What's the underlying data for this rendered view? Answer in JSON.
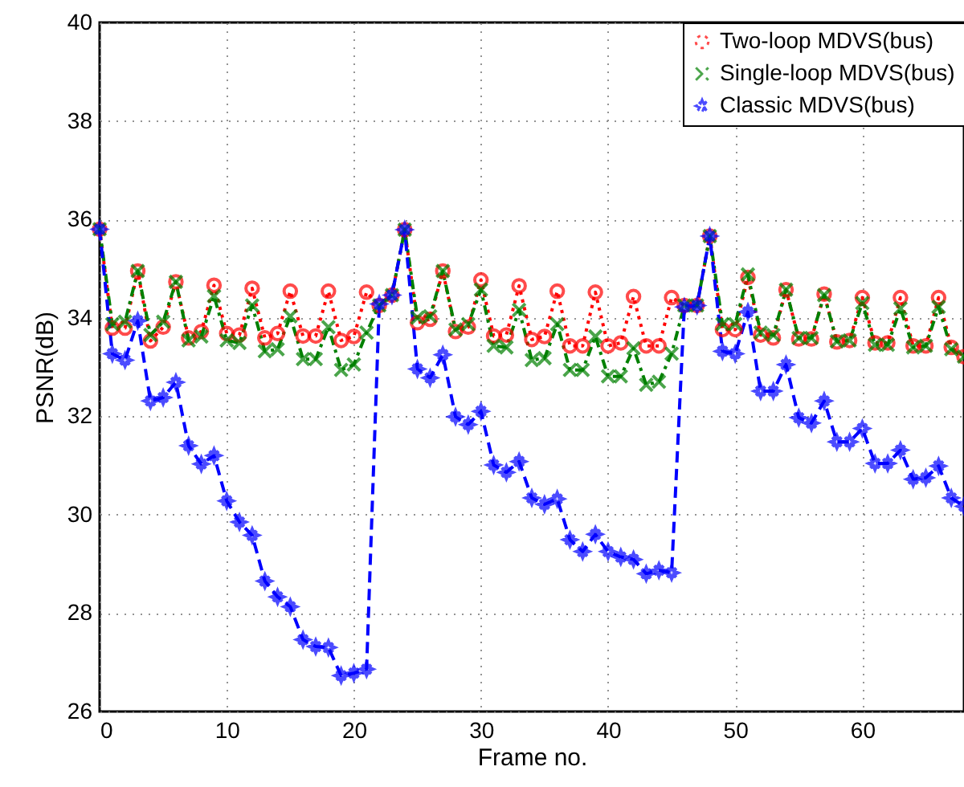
{
  "chart_data": {
    "type": "line",
    "xlabel": "Frame no.",
    "ylabel": "PSNR(dB)",
    "xlim": [
      0,
      68
    ],
    "ylim": [
      26,
      40
    ],
    "xticks": [
      0,
      10,
      20,
      30,
      40,
      50,
      60
    ],
    "yticks": [
      26,
      28,
      30,
      32,
      34,
      36,
      38,
      40
    ],
    "grid": true,
    "legend": "top right",
    "x": [
      0,
      1,
      2,
      3,
      4,
      5,
      6,
      7,
      8,
      9,
      10,
      11,
      12,
      13,
      14,
      15,
      16,
      17,
      18,
      19,
      20,
      21,
      22,
      23,
      24,
      25,
      26,
      27,
      28,
      29,
      30,
      31,
      32,
      33,
      34,
      35,
      36,
      37,
      38,
      39,
      40,
      41,
      42,
      43,
      44,
      45,
      46,
      47,
      48,
      49,
      50,
      51,
      52,
      53,
      54,
      55,
      56,
      57,
      58,
      59,
      60,
      61,
      62,
      63,
      64,
      65,
      66,
      67,
      68
    ],
    "series": [
      {
        "name": "Two-loop MDVS(bus)",
        "color": "#ff0000",
        "marker": "circle",
        "line_style": "dotted",
        "values": [
          35.8,
          33.79,
          33.79,
          34.95,
          33.53,
          33.81,
          34.73,
          33.59,
          33.72,
          34.66,
          33.68,
          33.65,
          34.6,
          33.59,
          33.68,
          34.54,
          33.63,
          33.63,
          34.54,
          33.54,
          33.62,
          34.52,
          34.25,
          34.46,
          35.79,
          33.9,
          33.97,
          34.95,
          33.72,
          33.81,
          34.77,
          33.63,
          33.65,
          34.65,
          33.56,
          33.62,
          34.54,
          33.43,
          33.43,
          34.52,
          33.43,
          33.49,
          34.43,
          33.43,
          33.43,
          34.41,
          34.25,
          34.25,
          35.66,
          33.76,
          33.76,
          34.82,
          33.65,
          33.59,
          34.57,
          33.57,
          33.57,
          34.48,
          33.51,
          33.54,
          34.41,
          33.49,
          33.49,
          34.41,
          33.43,
          33.43,
          34.41,
          33.4,
          33.21
        ]
      },
      {
        "name": "Single-loop MDVS(bus)",
        "color": "#008000",
        "marker": "cross",
        "line_style": "dashed",
        "values": [
          35.8,
          33.87,
          33.92,
          34.95,
          33.65,
          33.92,
          34.73,
          33.54,
          33.62,
          34.44,
          33.54,
          33.49,
          34.25,
          33.32,
          33.36,
          34.03,
          33.16,
          33.16,
          33.81,
          32.94,
          33.05,
          33.7,
          34.25,
          34.46,
          35.79,
          34.0,
          34.03,
          34.95,
          33.76,
          33.87,
          34.57,
          33.43,
          33.4,
          34.16,
          33.14,
          33.18,
          33.87,
          32.94,
          32.94,
          33.62,
          32.81,
          32.81,
          33.38,
          32.64,
          32.7,
          33.27,
          34.25,
          34.25,
          35.66,
          33.87,
          33.87,
          34.88,
          33.7,
          33.65,
          34.57,
          33.59,
          33.59,
          34.46,
          33.52,
          33.54,
          34.3,
          33.45,
          33.45,
          34.19,
          33.4,
          33.43,
          34.22,
          33.36,
          33.21
        ]
      },
      {
        "name": "Classic MDVS(bus)",
        "color": "#0000ff",
        "marker": "star",
        "line_style": "dashed",
        "values": [
          35.8,
          33.27,
          33.14,
          33.94,
          32.31,
          32.38,
          32.69,
          31.4,
          31.03,
          31.2,
          30.28,
          29.85,
          29.58,
          28.65,
          28.33,
          28.13,
          27.46,
          27.32,
          27.3,
          26.73,
          26.78,
          26.86,
          34.28,
          34.46,
          35.79,
          32.96,
          32.78,
          33.25,
          31.99,
          31.83,
          32.1,
          31.01,
          30.86,
          31.08,
          30.34,
          30.21,
          30.32,
          29.49,
          29.25,
          29.6,
          29.25,
          29.14,
          29.09,
          28.8,
          28.87,
          28.82,
          34.22,
          34.25,
          35.66,
          33.32,
          33.27,
          34.12,
          32.51,
          32.51,
          33.05,
          31.97,
          31.86,
          32.31,
          31.48,
          31.48,
          31.75,
          31.04,
          31.04,
          31.31,
          30.72,
          30.75,
          30.99,
          30.34,
          30.17
        ]
      }
    ]
  }
}
